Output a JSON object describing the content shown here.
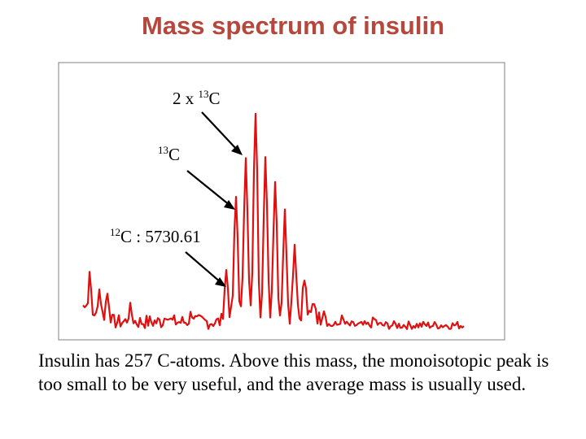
{
  "slide": {
    "title": "Mass spectrum of insulin",
    "caption": "Insulin has 257 C-atoms. Above this mass, the monoisotopic peak is too small to be very useful, and the average mass is usually used."
  },
  "colors": {
    "title": "#b5473c",
    "trace": "#e01010",
    "frame": "#808080",
    "text": "#000000"
  },
  "chart_data": {
    "type": "line",
    "title": "",
    "xlabel": "",
    "ylabel": "",
    "axes_visible": false,
    "grid": false,
    "series": [
      {
        "color": "#e01010"
      }
    ],
    "annotations": [
      {
        "iso": "12",
        "text": "C : 5730.61",
        "peak": "monoisotopic"
      },
      {
        "iso": "13",
        "text": "C",
        "peak": "one 13C"
      },
      {
        "prefix": "2 x ",
        "iso": "13",
        "text": "C",
        "peak": "two 13C"
      }
    ]
  }
}
